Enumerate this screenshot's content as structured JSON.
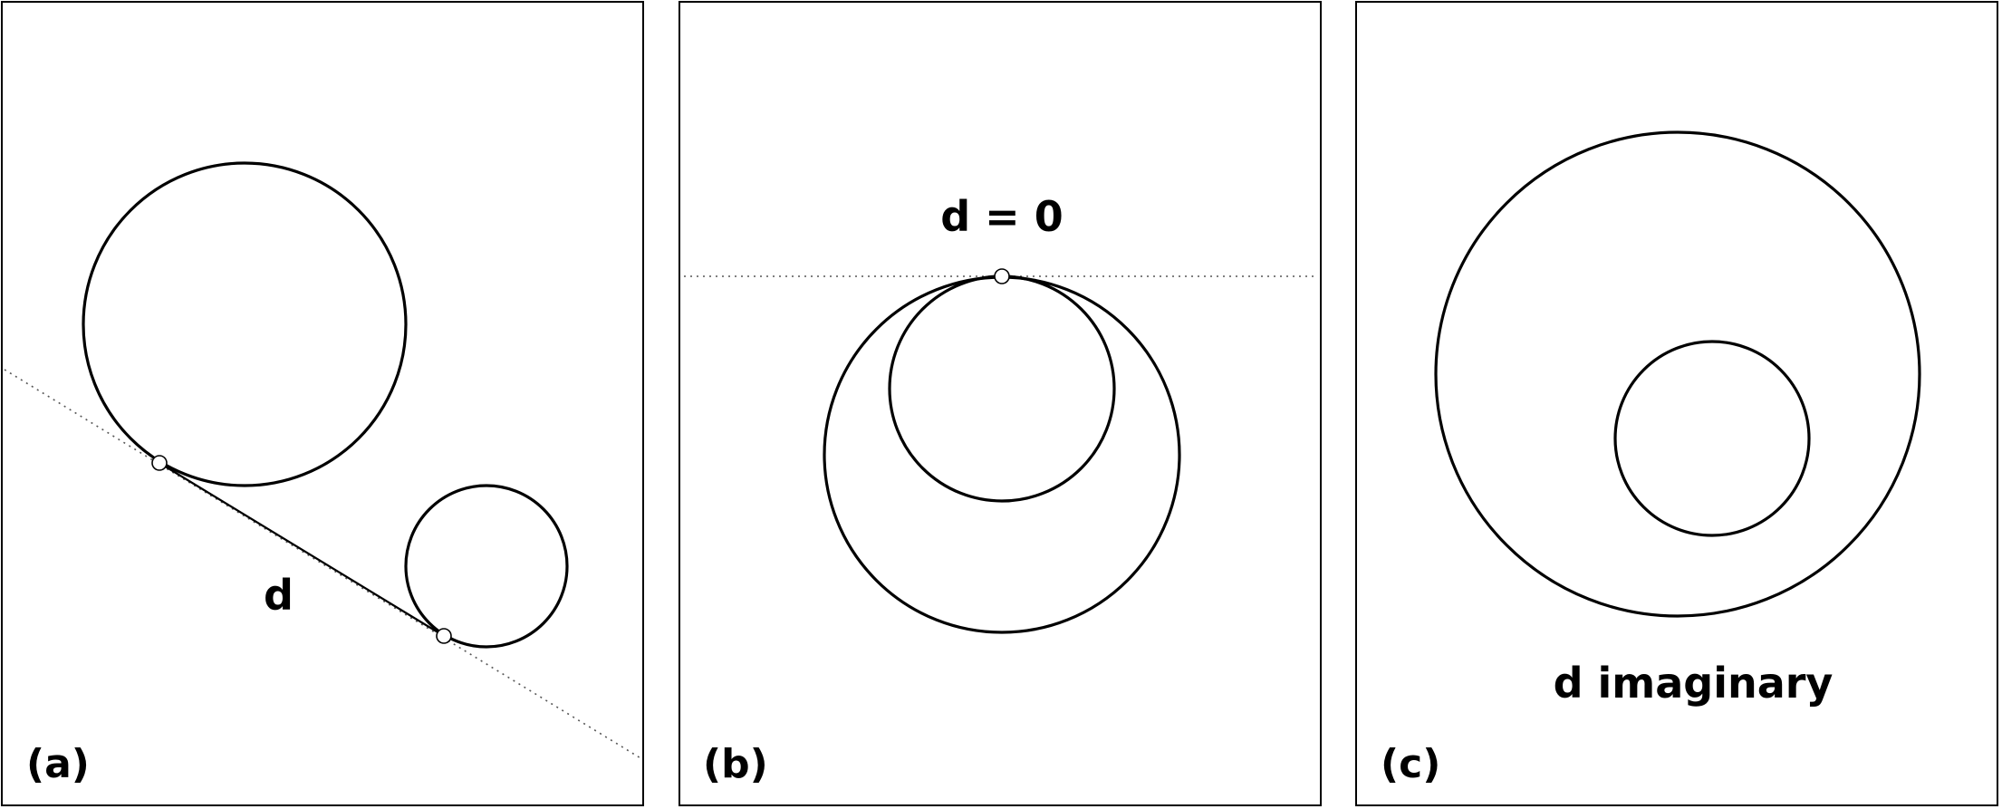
{
  "panels": [
    {
      "id": "a",
      "label": "(a)",
      "distance_label": "d"
    },
    {
      "id": "b",
      "label": "(b)",
      "distance_label": "d = 0"
    },
    {
      "id": "c",
      "label": "(c)",
      "distance_label": "d imaginary"
    }
  ]
}
